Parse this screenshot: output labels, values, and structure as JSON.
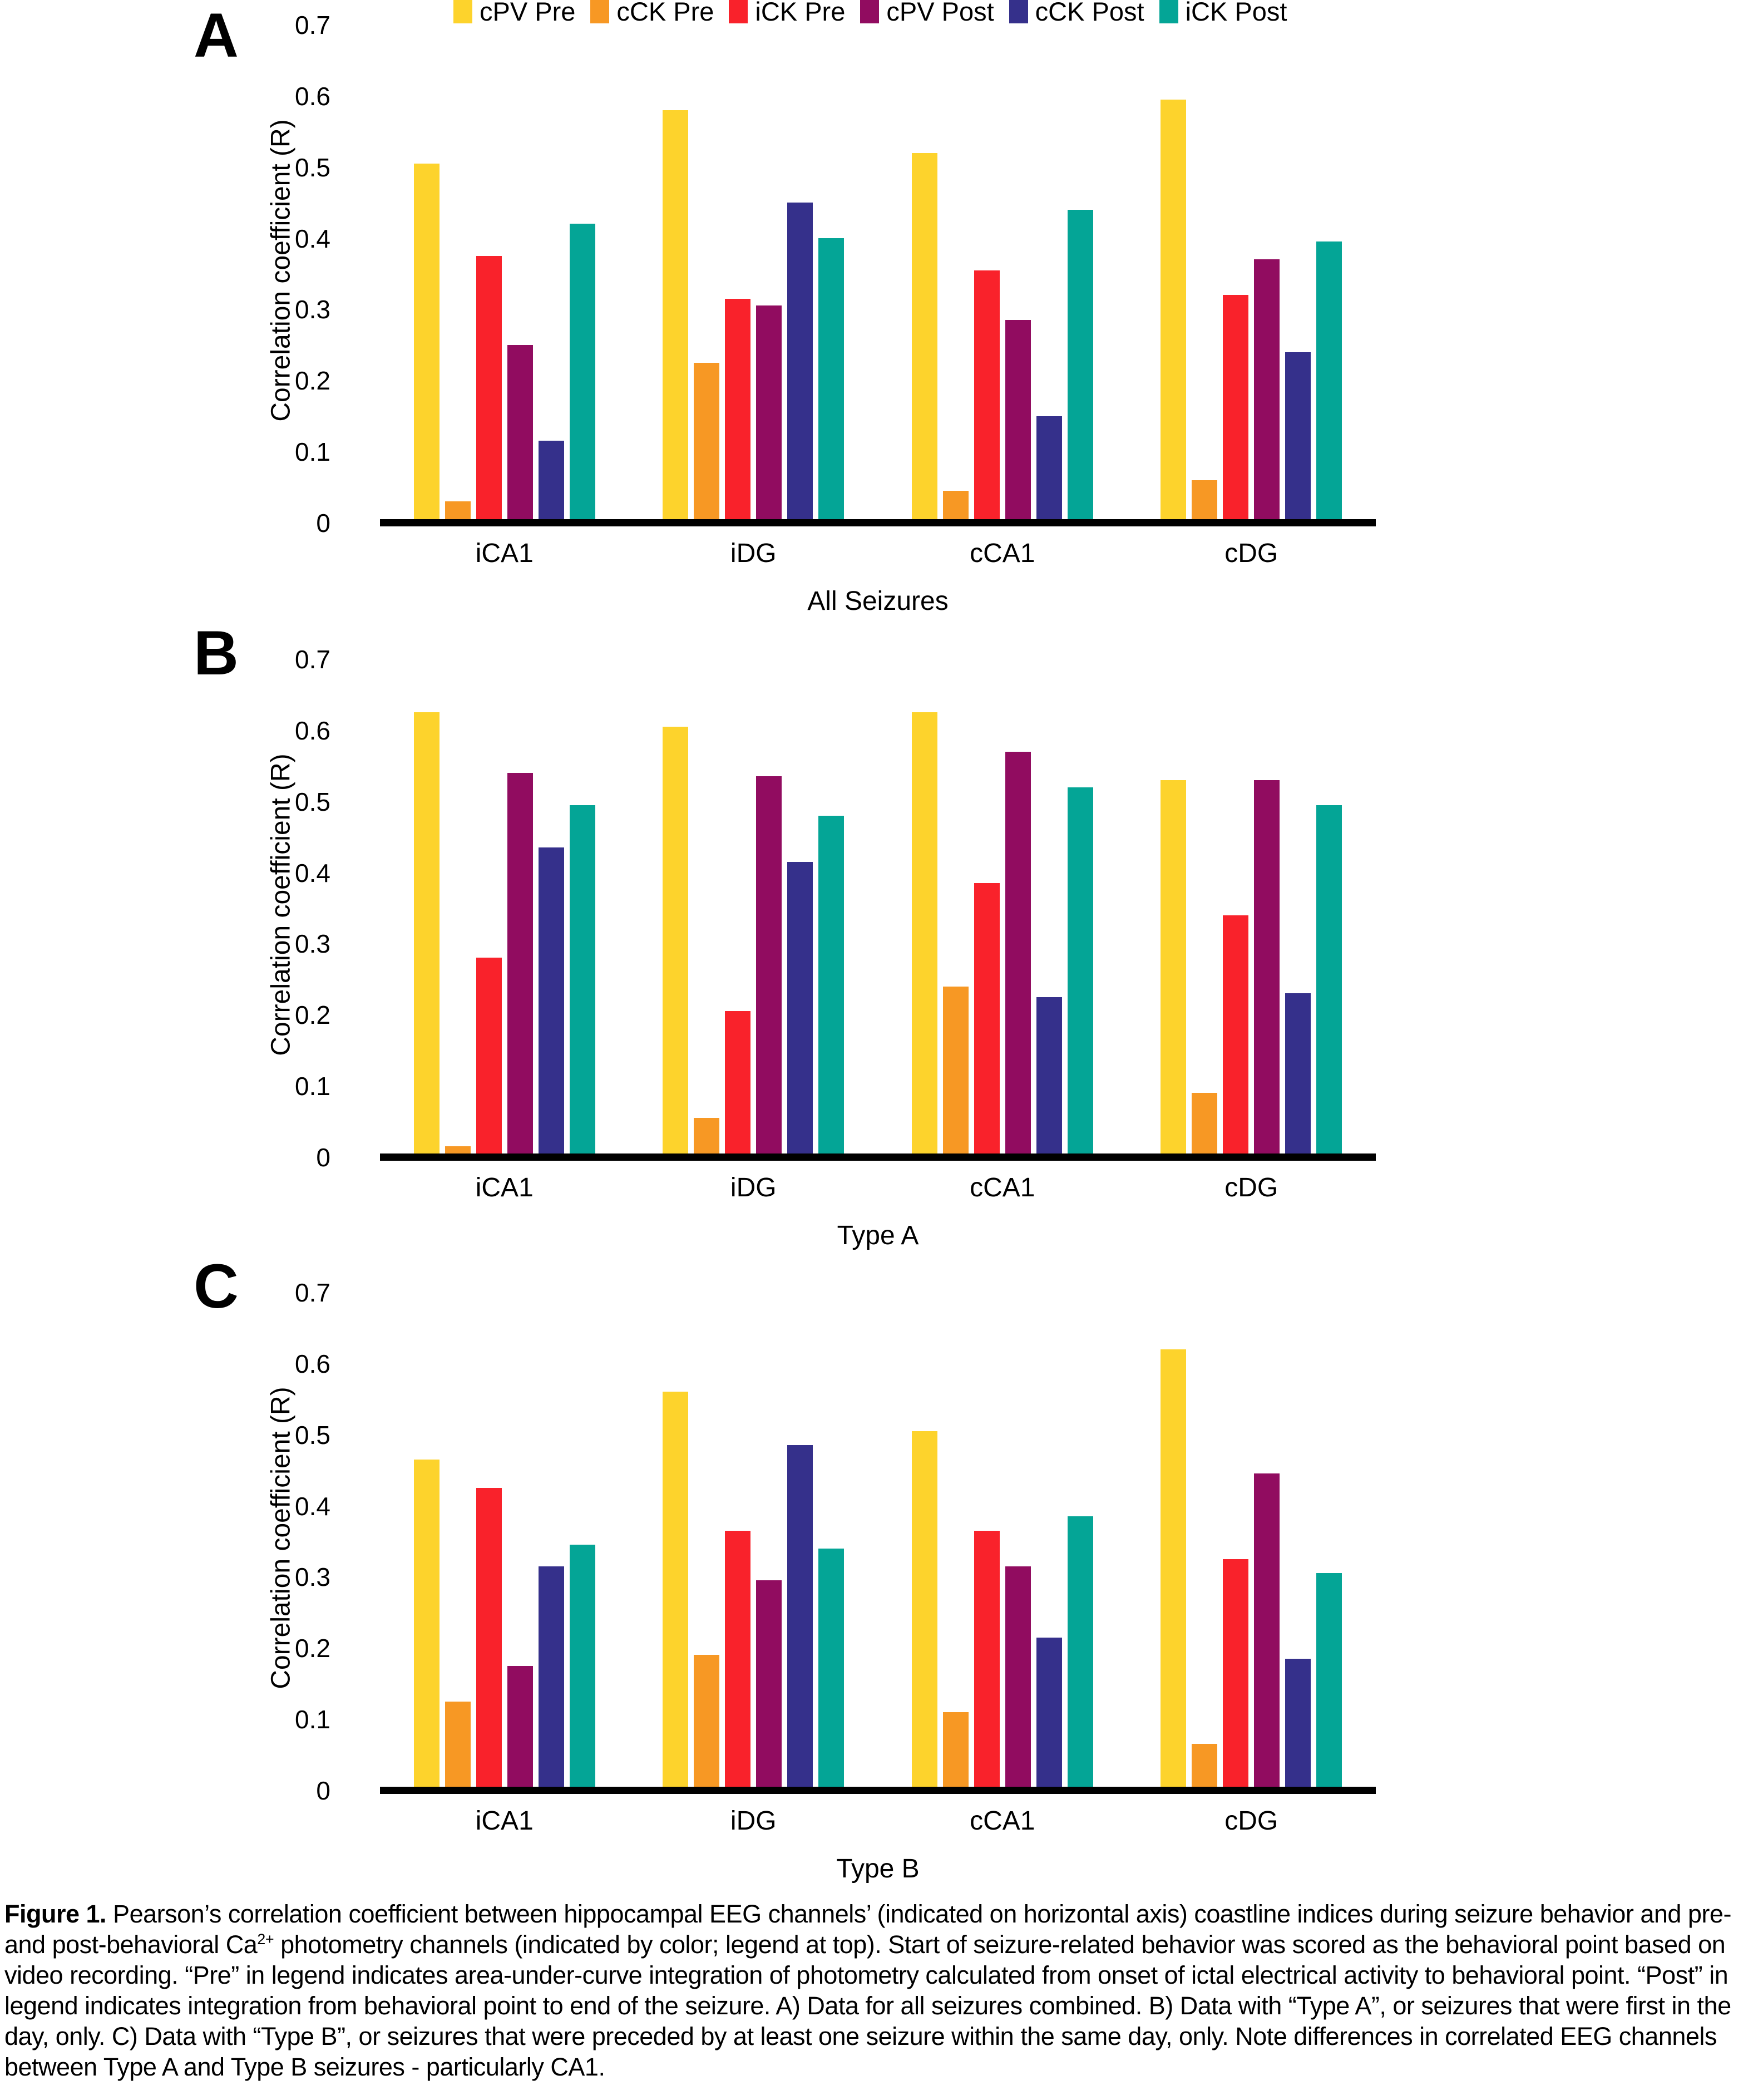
{
  "y_axis_tick_labels": [
    "0.7",
    "0.6",
    "0.5",
    "0.4",
    "0.3",
    "0.2",
    "0.1",
    "0"
  ],
  "chart_data": [
    {
      "id": "A",
      "panel_label": "A",
      "type": "bar",
      "title": "All Seizures",
      "xlabel": "All Seizures",
      "ylabel": "Correlation coefficient (R)",
      "ylim": [
        0,
        0.7
      ],
      "yticks": [
        0.7,
        0.6,
        0.5,
        0.4,
        0.3,
        0.2,
        0.1,
        0
      ],
      "grid": false,
      "legend_position": "top",
      "categories": [
        "iCA1",
        "iDG",
        "cCA1",
        "cDG"
      ],
      "series": [
        {
          "name": "cPV Pre",
          "color": "#FDD32C",
          "values": [
            0.5,
            0.575,
            0.515,
            0.59
          ]
        },
        {
          "name": "cCK Pre",
          "color": "#F79824",
          "values": [
            0.025,
            0.22,
            0.04,
            0.055
          ]
        },
        {
          "name": "iCK Pre",
          "color": "#F9222B",
          "values": [
            0.37,
            0.31,
            0.35,
            0.315
          ]
        },
        {
          "name": "cPV Post",
          "color": "#910C60",
          "values": [
            0.245,
            0.3,
            0.28,
            0.365
          ]
        },
        {
          "name": "cCK Post",
          "color": "#35308B",
          "values": [
            0.11,
            0.445,
            0.145,
            0.235
          ]
        },
        {
          "name": "iCK Post",
          "color": "#04A596",
          "values": [
            0.415,
            0.395,
            0.435,
            0.39
          ]
        }
      ]
    },
    {
      "id": "B",
      "panel_label": "B",
      "type": "bar",
      "title": "Type A",
      "xlabel": "Type A",
      "ylabel": "Correlation coefficient (R)",
      "ylim": [
        0,
        0.7
      ],
      "yticks": [
        0.7,
        0.6,
        0.5,
        0.4,
        0.3,
        0.2,
        0.1,
        0
      ],
      "grid": false,
      "legend_position": "none",
      "categories": [
        "iCA1",
        "iDG",
        "cCA1",
        "cDG"
      ],
      "series": [
        {
          "name": "cPV Pre",
          "color": "#FDD32C",
          "values": [
            0.62,
            0.6,
            0.62,
            0.525
          ]
        },
        {
          "name": "cCK Pre",
          "color": "#F79824",
          "values": [
            0.01,
            0.05,
            0.235,
            0.085
          ]
        },
        {
          "name": "iCK Pre",
          "color": "#F9222B",
          "values": [
            0.275,
            0.2,
            0.38,
            0.335
          ]
        },
        {
          "name": "cPV Post",
          "color": "#910C60",
          "values": [
            0.535,
            0.53,
            0.565,
            0.525
          ]
        },
        {
          "name": "cCK Post",
          "color": "#35308B",
          "values": [
            0.43,
            0.41,
            0.22,
            0.225
          ]
        },
        {
          "name": "iCK Post",
          "color": "#04A596",
          "values": [
            0.49,
            0.475,
            0.515,
            0.49
          ]
        }
      ]
    },
    {
      "id": "C",
      "panel_label": "C",
      "type": "bar",
      "title": "Type B",
      "xlabel": "Type B",
      "ylabel": "Correlation coefficient (R)",
      "ylim": [
        0,
        0.7
      ],
      "yticks": [
        0.7,
        0.6,
        0.5,
        0.4,
        0.3,
        0.2,
        0.1,
        0
      ],
      "grid": false,
      "legend_position": "none",
      "categories": [
        "iCA1",
        "iDG",
        "cCA1",
        "cDG"
      ],
      "series": [
        {
          "name": "cPV Pre",
          "color": "#FDD32C",
          "values": [
            0.46,
            0.555,
            0.5,
            0.615
          ]
        },
        {
          "name": "cCK Pre",
          "color": "#F79824",
          "values": [
            0.12,
            0.185,
            0.105,
            0.06
          ]
        },
        {
          "name": "iCK Pre",
          "color": "#F9222B",
          "values": [
            0.42,
            0.36,
            0.36,
            0.32
          ]
        },
        {
          "name": "cPV Post",
          "color": "#910C60",
          "values": [
            0.17,
            0.29,
            0.31,
            0.44
          ]
        },
        {
          "name": "cCK Post",
          "color": "#35308B",
          "values": [
            0.31,
            0.48,
            0.21,
            0.18
          ]
        },
        {
          "name": "iCK Post",
          "color": "#04A596",
          "values": [
            0.34,
            0.335,
            0.38,
            0.3
          ]
        }
      ]
    }
  ],
  "caption": {
    "label": "Figure 1.",
    "body_before_sup": " Pearson’s correlation coefficient between hippocampal EEG channels’ (indicated on horizontal axis) coastline indices during seizure behavior and pre- and post-behavioral Ca",
    "sup": "2+",
    "body_after_sup": " photometry channels (indicated by color; legend at top). Start of seizure-related behavior was scored as the behavioral point based on video recording. “Pre” in legend indicates area-under-curve integration of photometry calculated from onset of ictal electrical activity to behavioral point. “Post” in legend indicates integration from behavioral point to end of the seizure. A) Data for all seizures combined. B) Data with “Type A”, or seizures that were first in the day, only. C) Data with “Type B”, or seizures that were preceded by at least one seizure within the same day, only. Note differences in correlated EEG channels between Type A and Type B seizures - particularly CA1."
  }
}
